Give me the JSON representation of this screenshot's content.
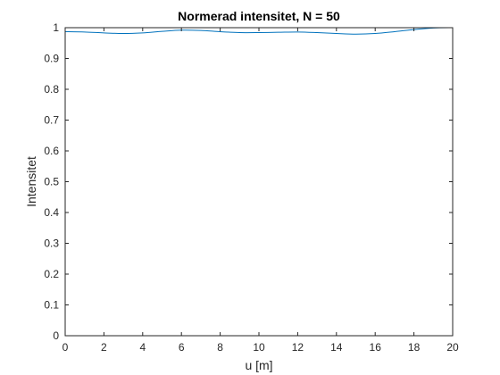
{
  "chart_data": {
    "type": "line",
    "title": "Normerad intensitet, N = 50",
    "xlabel": "u [m]",
    "ylabel": "Intensitet",
    "xlim": [
      0,
      20
    ],
    "ylim": [
      0,
      1
    ],
    "x_ticks": [
      "0",
      "2",
      "4",
      "6",
      "8",
      "10",
      "12",
      "14",
      "16",
      "18",
      "20"
    ],
    "y_ticks": [
      "0",
      "0.1",
      "0.2",
      "0.3",
      "0.4",
      "0.5",
      "0.6",
      "0.7",
      "0.8",
      "0.9",
      "1"
    ],
    "grid": false,
    "series": [
      {
        "color": "#0072bd",
        "x": [
          0,
          1,
          2,
          3,
          4,
          5,
          6,
          7,
          8,
          9,
          10,
          11,
          12,
          13,
          14,
          15,
          16,
          17,
          18,
          19,
          20
        ],
        "y": [
          0.987,
          0.986,
          0.983,
          0.981,
          0.983,
          0.988,
          0.992,
          0.991,
          0.987,
          0.984,
          0.984,
          0.985,
          0.986,
          0.984,
          0.981,
          0.979,
          0.981,
          0.987,
          0.994,
          0.999,
          1.0
        ]
      }
    ]
  }
}
